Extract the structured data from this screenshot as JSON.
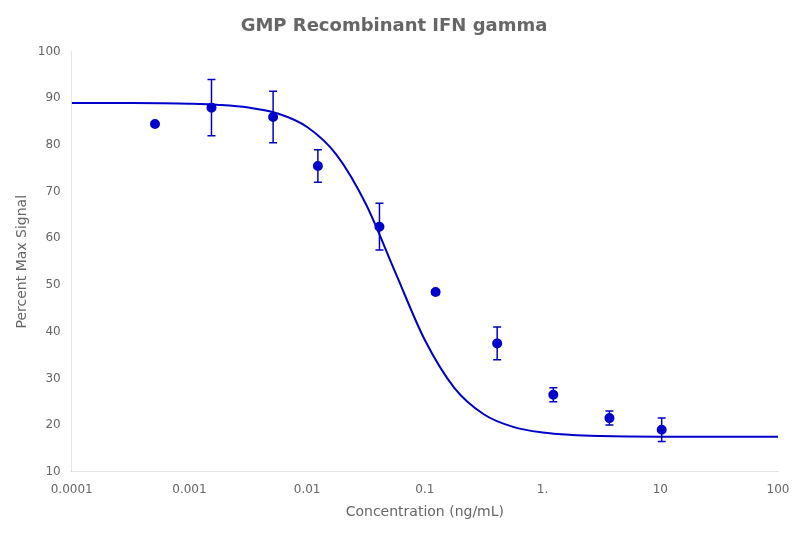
{
  "chart_data": {
    "type": "scatter",
    "title": "GMP Recombinant IFN gamma",
    "x_label": "Concentration (ng/mL)",
    "y_label": "Percent Max Signal",
    "log": "x",
    "grid": false,
    "xlim": [
      0.0001,
      100
    ],
    "ylim": [
      10,
      100
    ],
    "xticks": [
      0.0001,
      0.001,
      0.01,
      0.1,
      {
        "value": 1,
        "label": "1."
      },
      10,
      100
    ],
    "yticks": [
      10,
      20,
      30,
      40,
      50,
      60,
      70,
      80,
      90,
      100
    ],
    "series": [
      {
        "type": "line",
        "color": "#0000CD",
        "marker": "none",
        "line_style": "solid",
        "x": [
          0.0001,
          0.00017783,
          0.00031623,
          0.00056234,
          0.001,
          0.0017783,
          0.0031623,
          0.0056234,
          0.01,
          0.017783,
          0.031623,
          0.056234,
          0.1,
          0.17783,
          0.31623,
          0.56234,
          1,
          1.7783,
          3.1623,
          5.6234,
          10,
          17.783,
          31.623,
          56.234,
          100
        ],
        "values": [
          88.994,
          88.987,
          88.969,
          88.926,
          88.825,
          88.587,
          88.028,
          86.736,
          83.855,
          77.895,
          67.292,
          52.655,
          38.216,
          27.994,
          22.335,
          19.622,
          18.41,
          17.887,
          17.664,
          17.569,
          17.529,
          17.512,
          17.505,
          17.502,
          17.501
        ]
      },
      {
        "type": "scatter",
        "color": "#0000CD",
        "marker": "circle",
        "x": [
          0.00051,
          0.00154,
          0.00514,
          0.01234,
          0.04115,
          0.1234,
          0.4115,
          1.234,
          3.7,
          10.28
        ],
        "values": [
          84.5,
          88.0,
          86.0,
          75.5,
          62.5,
          48.5,
          37.5,
          26.5,
          21.5,
          19.0
        ],
        "errors": [
          0.5,
          6.0,
          5.5,
          3.5,
          5.0,
          0.5,
          3.5,
          1.5,
          1.5,
          2.5
        ]
      }
    ]
  }
}
